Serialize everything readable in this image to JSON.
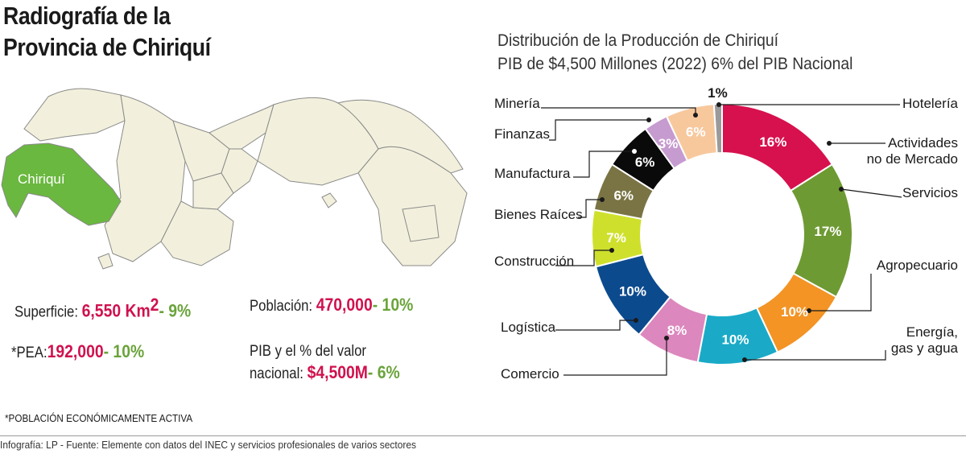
{
  "header": {
    "title_line1": "Radiografía de la",
    "title_line2": "Provincia de Chiriquí"
  },
  "map": {
    "region_label": "Chiriquí",
    "colors": {
      "highlight": "#6ab83f",
      "base": "#f2f0dc",
      "border": "#8a8a8a"
    }
  },
  "stats": {
    "superficie": {
      "label": "Superficie:",
      "value": "6,550 Km",
      "sup": "2",
      "share": "- 9%"
    },
    "poblacion": {
      "label": "Población:",
      "value": "470,000",
      "share": "- 10%"
    },
    "pea": {
      "label": "*PEA:",
      "value": "192,000",
      "share": "- 10%"
    },
    "pib": {
      "label_line1": "PIB y el % del valor",
      "label_line2": "nacional:",
      "value": "$4,500M",
      "share": "- 6%"
    }
  },
  "footnote": "*POBLACIÓN ECONÓMICAMENTE ACTIVA",
  "credit": "Infografía: LP - Fuente:  Elemente con datos del INEC y servicios profesionales de varios sectores",
  "chart_data": {
    "type": "pie",
    "title": "Distribución de la Producción de Chiriquí",
    "subtitle": "PIB de $4,500 Millones (2022)  6% del PIB Nacional",
    "categories": [
      "Actividades no de Mercado",
      "Servicios",
      "Agropecuario",
      "Energía, gas y agua",
      "Comercio",
      "Logística",
      "Construcción",
      "Bienes Raíces",
      "Manufactura",
      "Finanzas",
      "Minería",
      "Hotelería"
    ],
    "values": [
      16,
      17,
      10,
      10,
      8,
      10,
      7,
      6,
      6,
      3,
      6,
      1
    ],
    "value_labels": [
      "16%",
      "17%",
      "10%",
      "10%",
      "8%",
      "10%",
      "7%",
      "6%",
      "6%",
      "3%",
      "6%",
      "1%"
    ],
    "colors": [
      "#d6114e",
      "#6e9a33",
      "#f39425",
      "#1aaac7",
      "#dc87be",
      "#0c4a8e",
      "#cfe02c",
      "#7a7445",
      "#0a0a0a",
      "#c69bcf",
      "#f8c89d",
      "#9a9a9a"
    ],
    "legend_labels": [
      [
        "Actividades",
        "no de Mercado"
      ],
      [
        "Servicios"
      ],
      [
        "Agropecuario"
      ],
      [
        "Energía,",
        "gas y agua"
      ],
      [
        "Comercio"
      ],
      [
        "Logística"
      ],
      [
        "Construcción"
      ],
      [
        "Bienes Raíces"
      ],
      [
        "Manufactura"
      ],
      [
        "Finanzas"
      ],
      [
        "Minería"
      ],
      [
        "Hotelería"
      ]
    ]
  }
}
